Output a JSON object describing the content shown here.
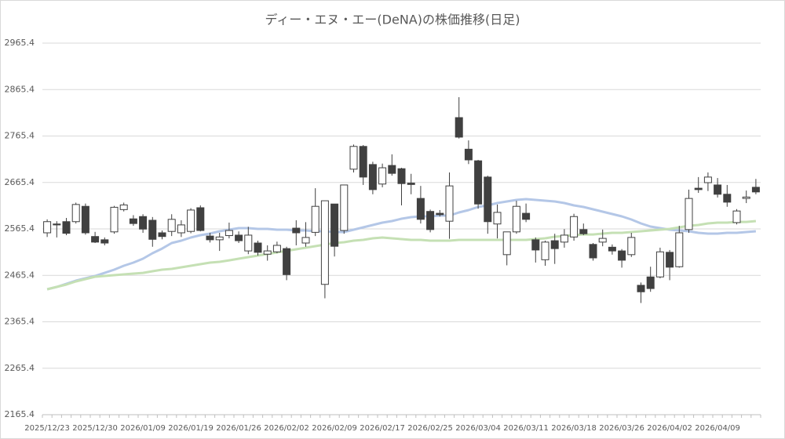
{
  "chart_data": {
    "type": "candlestick",
    "title": "ディー・エヌ・エー(DeNA)の株価推移(日足)",
    "categories": [
      "2025/12/23",
      null,
      null,
      null,
      null,
      "2025/12/30",
      null,
      null,
      null,
      null,
      "2026/01/09",
      null,
      null,
      null,
      null,
      "2026/01/19",
      null,
      null,
      null,
      null,
      "2026/01/26",
      null,
      null,
      null,
      null,
      "2026/02/02",
      null,
      null,
      null,
      null,
      "2026/02/09",
      null,
      null,
      null,
      null,
      "2026/02/17",
      null,
      null,
      null,
      null,
      "2026/02/25",
      null,
      null,
      null,
      null,
      "2026/03/04",
      null,
      null,
      null,
      null,
      "2026/03/11",
      null,
      null,
      null,
      null,
      "2026/03/18",
      null,
      null,
      null,
      null,
      "2026/03/26",
      null,
      null,
      null,
      null,
      "2026/04/02",
      null,
      null,
      null,
      null,
      "2026/04/09",
      null,
      null,
      null,
      null
    ],
    "open": [
      2557,
      2576,
      2581,
      2581,
      2614,
      2549,
      2542,
      2559,
      2607,
      2587,
      2592,
      2584,
      2557,
      2560,
      2557,
      2560,
      2611,
      2550,
      2542,
      2551,
      2552,
      2518,
      2535,
      2511,
      2516,
      2523,
      2567,
      2535,
      2558,
      2446,
      2619,
      2562,
      2694,
      2743,
      2704,
      2662,
      2702,
      2695,
      2664,
      2631,
      2603,
      2599,
      2582,
      2805,
      2737,
      2712,
      2677,
      2576,
      2510,
      2559,
      2599,
      2542,
      2499,
      2540,
      2537,
      2548,
      2564,
      2532,
      2537,
      2526,
      2518,
      2510,
      2444,
      2462,
      2462,
      2515,
      2484,
      2564,
      2653,
      2665,
      2660,
      2640,
      2579,
      2631,
      2655
    ],
    "high": [
      2586,
      2582,
      2589,
      2622,
      2620,
      2559,
      2547,
      2615,
      2622,
      2595,
      2597,
      2591,
      2562,
      2597,
      2584,
      2610,
      2616,
      2557,
      2557,
      2579,
      2560,
      2570,
      2540,
      2530,
      2538,
      2527,
      2584,
      2580,
      2653,
      2626,
      2619,
      2660,
      2747,
      2746,
      2710,
      2706,
      2726,
      2697,
      2684,
      2658,
      2607,
      2606,
      2687,
      2849,
      2756,
      2714,
      2680,
      2618,
      2559,
      2626,
      2620,
      2547,
      2540,
      2555,
      2565,
      2598,
      2577,
      2535,
      2564,
      2532,
      2522,
      2557,
      2450,
      2484,
      2525,
      2520,
      2572,
      2650,
      2677,
      2687,
      2675,
      2660,
      2608,
      2648,
      2673
    ],
    "low": [
      2548,
      2547,
      2552,
      2577,
      2553,
      2535,
      2530,
      2555,
      2603,
      2572,
      2557,
      2527,
      2543,
      2550,
      2548,
      2556,
      2560,
      2536,
      2518,
      2545,
      2535,
      2511,
      2508,
      2497,
      2513,
      2455,
      2530,
      2527,
      2550,
      2416,
      2506,
      2555,
      2687,
      2660,
      2640,
      2655,
      2680,
      2616,
      2640,
      2577,
      2558,
      2592,
      2544,
      2760,
      2705,
      2609,
      2555,
      2545,
      2487,
      2555,
      2580,
      2493,
      2486,
      2490,
      2525,
      2540,
      2552,
      2497,
      2528,
      2510,
      2482,
      2505,
      2406,
      2430,
      2459,
      2455,
      2482,
      2557,
      2643,
      2647,
      2633,
      2613,
      2575,
      2621,
      2640
    ],
    "close": [
      2581,
      2574,
      2556,
      2618,
      2557,
      2537,
      2535,
      2612,
      2617,
      2577,
      2565,
      2543,
      2549,
      2586,
      2574,
      2606,
      2562,
      2542,
      2548,
      2562,
      2540,
      2552,
      2515,
      2518,
      2530,
      2467,
      2557,
      2547,
      2614,
      2626,
      2528,
      2660,
      2743,
      2677,
      2650,
      2697,
      2685,
      2663,
      2661,
      2586,
      2564,
      2596,
      2658,
      2763,
      2714,
      2619,
      2581,
      2601,
      2559,
      2614,
      2586,
      2520,
      2537,
      2523,
      2552,
      2592,
      2555,
      2503,
      2545,
      2518,
      2498,
      2547,
      2430,
      2437,
      2516,
      2483,
      2557,
      2631,
      2650,
      2677,
      2640,
      2623,
      2604,
      2634,
      2645
    ],
    "up_color": "#ffffff",
    "down_color": "#404040",
    "series": [
      {
        "color": "#b4c7e7",
        "values": [
          2435.4,
          2440.5,
          2447.2,
          2454.0,
          2459.0,
          2464.1,
          2470.8,
          2477.6,
          2486.0,
          2492.8,
          2501.2,
          2513.0,
          2523.1,
          2535.0,
          2540.0,
          2546.8,
          2551.9,
          2555.2,
          2560.3,
          2563.7,
          2567.1,
          2567.1,
          2565.4,
          2565.4,
          2563.7,
          2563.7,
          2562.0,
          2562.0,
          2560.3,
          2560.3,
          2558.6,
          2558.6,
          2563.7,
          2568.7,
          2573.8,
          2578.9,
          2582.2,
          2587.3,
          2590.7,
          2592.4,
          2592.4,
          2594.1,
          2594.1,
          2600.8,
          2605.9,
          2612.6,
          2616.0,
          2621.1,
          2624.4,
          2627.8,
          2629.5,
          2627.8,
          2626.1,
          2624.4,
          2621.1,
          2616.0,
          2612.6,
          2607.6,
          2602.5,
          2597.4,
          2592.4,
          2585.6,
          2577.2,
          2570.4,
          2567.1,
          2563.7,
          2562.0,
          2560.3,
          2556.9,
          2555.2,
          2555.2,
          2556.9,
          2556.9,
          2558.6,
          2560.3
        ]
      },
      {
        "color": "#c5e0b4",
        "values": [
          2435.4,
          2440.5,
          2445.5,
          2452.3,
          2457.3,
          2462.4,
          2464.1,
          2465.8,
          2467.5,
          2469.2,
          2470.8,
          2474.2,
          2477.6,
          2479.3,
          2482.7,
          2486.0,
          2489.4,
          2492.8,
          2494.5,
          2497.8,
          2501.2,
          2504.6,
          2508.0,
          2511.4,
          2514.7,
          2518.1,
          2521.5,
          2524.9,
          2528.2,
          2531.6,
          2535.0,
          2536.7,
          2540.0,
          2541.7,
          2545.1,
          2546.8,
          2545.1,
          2543.4,
          2541.7,
          2541.7,
          2540.0,
          2540.0,
          2540.0,
          2541.7,
          2541.7,
          2541.7,
          2541.7,
          2541.7,
          2541.7,
          2541.7,
          2541.7,
          2543.4,
          2545.1,
          2548.5,
          2550.2,
          2551.9,
          2553.5,
          2553.5,
          2555.2,
          2556.9,
          2556.9,
          2558.6,
          2560.3,
          2562.0,
          2563.7,
          2565.4,
          2568.7,
          2572.1,
          2573.8,
          2577.2,
          2578.9,
          2578.9,
          2580.5,
          2580.5,
          2582.2
        ]
      }
    ],
    "ylim": [
      2165.4,
      2965.4
    ],
    "yticks": [
      2165.4,
      2265.4,
      2365.4,
      2465.4,
      2565.4,
      2665.4,
      2765.4,
      2865.4,
      2965.4
    ],
    "grid": true
  }
}
